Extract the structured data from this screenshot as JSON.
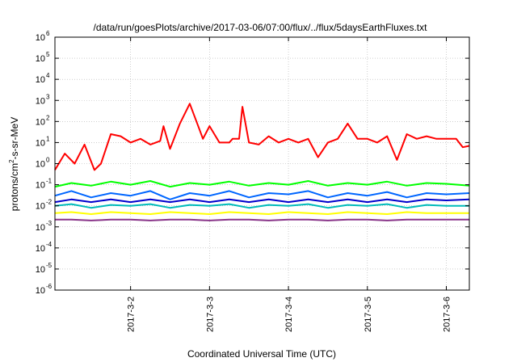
{
  "chart_data": {
    "type": "line",
    "title": "/data/run/goesPlots/archive/2017-03-06/07:00/flux/../flux/5daysEarthFluxes.txt",
    "xlabel": "Coordinated Universal Time (UTC)",
    "ylabel": {
      "base": "protons/cm",
      "sup": "2",
      "tail": "-s-sr-MeV"
    },
    "yscale": "log",
    "ylim_exp": [
      -6,
      6
    ],
    "yticks": [
      {
        "exp": -6,
        "label": "10",
        "sup": "-6"
      },
      {
        "exp": -5,
        "label": "10",
        "sup": "-5"
      },
      {
        "exp": -4,
        "label": "10",
        "sup": "-4"
      },
      {
        "exp": -3,
        "label": "10",
        "sup": "-3"
      },
      {
        "exp": -2,
        "label": "10",
        "sup": "-2"
      },
      {
        "exp": -1,
        "label": "10",
        "sup": "-1"
      },
      {
        "exp": 0,
        "label": "10",
        "sup": "0"
      },
      {
        "exp": 1,
        "label": "10",
        "sup": "1"
      },
      {
        "exp": 2,
        "label": "10",
        "sup": "2"
      },
      {
        "exp": 3,
        "label": "10",
        "sup": "3"
      },
      {
        "exp": 4,
        "label": "10",
        "sup": "4"
      },
      {
        "exp": 5,
        "label": "10",
        "sup": "5"
      },
      {
        "exp": 6,
        "label": "10",
        "sup": "6"
      }
    ],
    "xlim": [
      "2017-03-01T01:00",
      "2017-03-06T07:00"
    ],
    "xticks": [
      {
        "t": "2017-03-02T00:00",
        "label": "2017-3-2"
      },
      {
        "t": "2017-03-03T00:00",
        "label": "2017-3-3"
      },
      {
        "t": "2017-03-04T00:00",
        "label": "2017-3-4"
      },
      {
        "t": "2017-03-05T00:00",
        "label": "2017-3-5"
      },
      {
        "t": "2017-03-06T00:00",
        "label": "2017-3-6"
      }
    ],
    "grid": true,
    "series": [
      {
        "color": "#ff0000",
        "x": [
          "2017-03-01T01:00",
          "2017-03-01T04:00",
          "2017-03-01T07:00",
          "2017-03-01T10:00",
          "2017-03-01T13:00",
          "2017-03-01T15:00",
          "2017-03-01T18:00",
          "2017-03-01T21:00",
          "2017-03-02T00:00",
          "2017-03-02T03:00",
          "2017-03-02T06:00",
          "2017-03-02T09:00",
          "2017-03-02T10:00",
          "2017-03-02T12:00",
          "2017-03-02T15:00",
          "2017-03-02T18:00",
          "2017-03-02T21:00",
          "2017-03-02T22:00",
          "2017-03-03T00:00",
          "2017-03-03T03:00",
          "2017-03-03T06:00",
          "2017-03-03T07:00",
          "2017-03-03T09:00",
          "2017-03-03T10:00",
          "2017-03-03T12:00",
          "2017-03-03T15:00",
          "2017-03-03T18:00",
          "2017-03-03T21:00",
          "2017-03-04T00:00",
          "2017-03-04T03:00",
          "2017-03-04T06:00",
          "2017-03-04T09:00",
          "2017-03-04T12:00",
          "2017-03-04T15:00",
          "2017-03-04T18:00",
          "2017-03-04T21:00",
          "2017-03-05T00:00",
          "2017-03-05T03:00",
          "2017-03-05T06:00",
          "2017-03-05T09:00",
          "2017-03-05T12:00",
          "2017-03-05T15:00",
          "2017-03-05T18:00",
          "2017-03-05T21:00",
          "2017-03-06T00:00",
          "2017-03-06T03:00",
          "2017-03-06T05:00",
          "2017-03-06T07:00"
        ],
        "values": [
          0.5,
          3,
          1,
          8,
          0.5,
          1,
          25,
          20,
          10,
          15,
          8,
          12,
          60,
          5,
          80,
          700,
          40,
          15,
          60,
          10,
          10,
          15,
          15,
          500,
          10,
          8,
          20,
          10,
          15,
          10,
          15,
          2,
          10,
          15,
          80,
          15,
          15,
          10,
          20,
          1.5,
          25,
          15,
          20,
          15,
          15,
          15,
          6,
          7
        ]
      },
      {
        "color": "#00ff00",
        "x": [
          "2017-03-01T01:00",
          "2017-03-01T06:00",
          "2017-03-01T12:00",
          "2017-03-01T18:00",
          "2017-03-02T00:00",
          "2017-03-02T06:00",
          "2017-03-02T12:00",
          "2017-03-02T18:00",
          "2017-03-03T00:00",
          "2017-03-03T06:00",
          "2017-03-03T12:00",
          "2017-03-03T18:00",
          "2017-03-04T00:00",
          "2017-03-04T06:00",
          "2017-03-04T12:00",
          "2017-03-04T18:00",
          "2017-03-05T00:00",
          "2017-03-05T06:00",
          "2017-03-05T12:00",
          "2017-03-05T18:00",
          "2017-03-06T00:00",
          "2017-03-06T07:00"
        ],
        "values": [
          0.08,
          0.12,
          0.09,
          0.14,
          0.1,
          0.15,
          0.08,
          0.12,
          0.1,
          0.14,
          0.09,
          0.12,
          0.1,
          0.15,
          0.09,
          0.12,
          0.1,
          0.14,
          0.09,
          0.12,
          0.11,
          0.09
        ]
      },
      {
        "color": "#0066ff",
        "x": [
          "2017-03-01T01:00",
          "2017-03-01T06:00",
          "2017-03-01T12:00",
          "2017-03-01T18:00",
          "2017-03-02T00:00",
          "2017-03-02T06:00",
          "2017-03-02T12:00",
          "2017-03-02T18:00",
          "2017-03-03T00:00",
          "2017-03-03T06:00",
          "2017-03-03T12:00",
          "2017-03-03T18:00",
          "2017-03-04T00:00",
          "2017-03-04T06:00",
          "2017-03-04T12:00",
          "2017-03-04T18:00",
          "2017-03-05T00:00",
          "2017-03-05T06:00",
          "2017-03-05T12:00",
          "2017-03-05T18:00",
          "2017-03-06T00:00",
          "2017-03-06T07:00"
        ],
        "values": [
          0.03,
          0.05,
          0.025,
          0.04,
          0.03,
          0.05,
          0.02,
          0.04,
          0.03,
          0.05,
          0.025,
          0.04,
          0.035,
          0.05,
          0.025,
          0.04,
          0.03,
          0.045,
          0.025,
          0.04,
          0.035,
          0.04
        ]
      },
      {
        "color": "#0000cc",
        "x": [
          "2017-03-01T01:00",
          "2017-03-01T06:00",
          "2017-03-01T12:00",
          "2017-03-01T18:00",
          "2017-03-02T00:00",
          "2017-03-02T06:00",
          "2017-03-02T12:00",
          "2017-03-02T18:00",
          "2017-03-03T00:00",
          "2017-03-03T06:00",
          "2017-03-03T12:00",
          "2017-03-03T18:00",
          "2017-03-04T00:00",
          "2017-03-04T06:00",
          "2017-03-04T12:00",
          "2017-03-04T18:00",
          "2017-03-05T00:00",
          "2017-03-05T06:00",
          "2017-03-05T12:00",
          "2017-03-05T18:00",
          "2017-03-06T00:00",
          "2017-03-06T07:00"
        ],
        "values": [
          0.015,
          0.02,
          0.015,
          0.02,
          0.015,
          0.02,
          0.015,
          0.02,
          0.015,
          0.02,
          0.015,
          0.02,
          0.015,
          0.02,
          0.015,
          0.02,
          0.015,
          0.02,
          0.015,
          0.02,
          0.018,
          0.02
        ]
      },
      {
        "color": "#00bbbb",
        "x": [
          "2017-03-01T01:00",
          "2017-03-01T06:00",
          "2017-03-01T12:00",
          "2017-03-01T18:00",
          "2017-03-02T00:00",
          "2017-03-02T06:00",
          "2017-03-02T12:00",
          "2017-03-02T18:00",
          "2017-03-03T00:00",
          "2017-03-03T06:00",
          "2017-03-03T12:00",
          "2017-03-03T18:00",
          "2017-03-04T00:00",
          "2017-03-04T06:00",
          "2017-03-04T12:00",
          "2017-03-04T18:00",
          "2017-03-05T00:00",
          "2017-03-05T06:00",
          "2017-03-05T12:00",
          "2017-03-05T18:00",
          "2017-03-06T00:00",
          "2017-03-06T07:00"
        ],
        "values": [
          0.01,
          0.012,
          0.008,
          0.011,
          0.01,
          0.012,
          0.008,
          0.011,
          0.01,
          0.012,
          0.008,
          0.011,
          0.01,
          0.012,
          0.008,
          0.011,
          0.01,
          0.012,
          0.008,
          0.011,
          0.01,
          0.01
        ]
      },
      {
        "color": "#ffff00",
        "x": [
          "2017-03-01T01:00",
          "2017-03-01T06:00",
          "2017-03-01T12:00",
          "2017-03-01T18:00",
          "2017-03-02T00:00",
          "2017-03-02T06:00",
          "2017-03-02T12:00",
          "2017-03-02T18:00",
          "2017-03-03T00:00",
          "2017-03-03T06:00",
          "2017-03-03T12:00",
          "2017-03-03T18:00",
          "2017-03-04T00:00",
          "2017-03-04T06:00",
          "2017-03-04T12:00",
          "2017-03-04T18:00",
          "2017-03-05T00:00",
          "2017-03-05T06:00",
          "2017-03-05T12:00",
          "2017-03-05T18:00",
          "2017-03-06T00:00",
          "2017-03-06T07:00"
        ],
        "values": [
          0.0045,
          0.005,
          0.004,
          0.005,
          0.0045,
          0.004,
          0.005,
          0.0045,
          0.004,
          0.005,
          0.0045,
          0.004,
          0.005,
          0.0045,
          0.004,
          0.005,
          0.0045,
          0.004,
          0.005,
          0.0045,
          0.0045,
          0.0045
        ]
      },
      {
        "color": "#883388",
        "x": [
          "2017-03-01T01:00",
          "2017-03-01T06:00",
          "2017-03-01T12:00",
          "2017-03-01T18:00",
          "2017-03-02T00:00",
          "2017-03-02T06:00",
          "2017-03-02T12:00",
          "2017-03-02T18:00",
          "2017-03-03T00:00",
          "2017-03-03T06:00",
          "2017-03-03T12:00",
          "2017-03-03T18:00",
          "2017-03-04T00:00",
          "2017-03-04T06:00",
          "2017-03-04T12:00",
          "2017-03-04T18:00",
          "2017-03-05T00:00",
          "2017-03-05T06:00",
          "2017-03-05T12:00",
          "2017-03-05T18:00",
          "2017-03-06T00:00",
          "2017-03-06T07:00"
        ],
        "values": [
          0.0022,
          0.0022,
          0.002,
          0.0022,
          0.0022,
          0.002,
          0.0022,
          0.0022,
          0.002,
          0.0022,
          0.0022,
          0.002,
          0.0022,
          0.0022,
          0.002,
          0.0022,
          0.0022,
          0.002,
          0.0022,
          0.0022,
          0.0022,
          0.0022
        ]
      }
    ]
  }
}
